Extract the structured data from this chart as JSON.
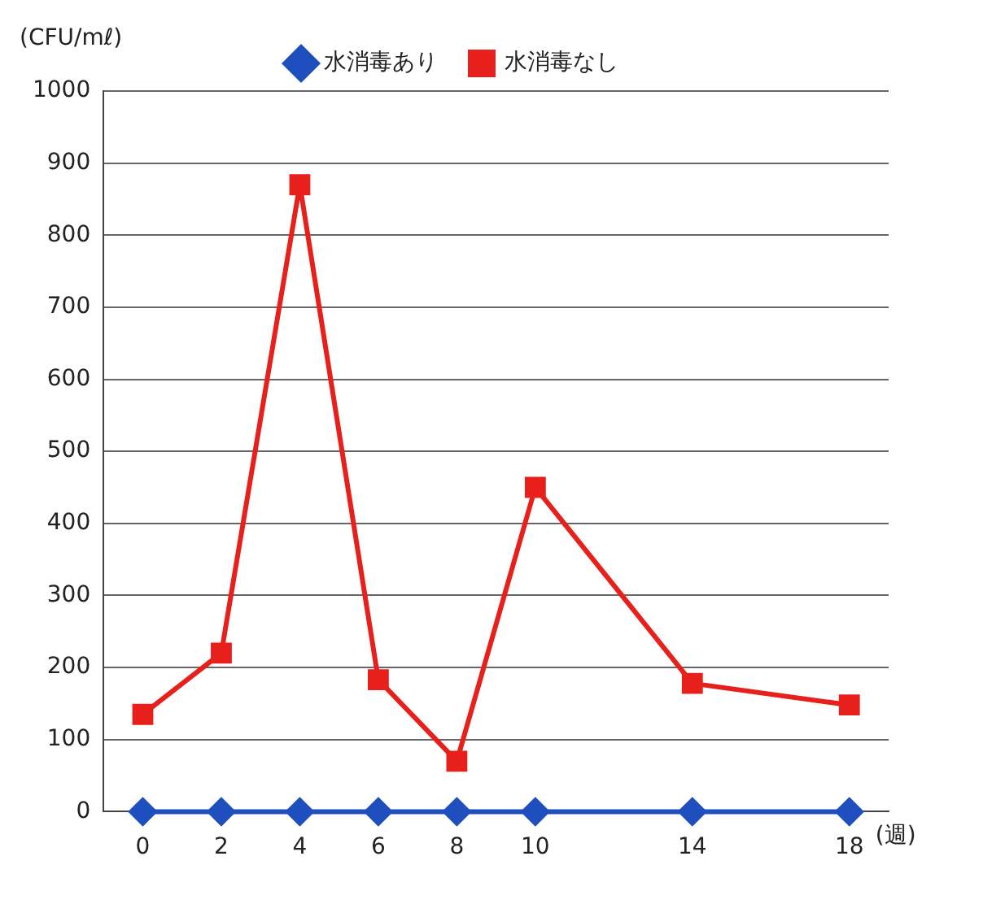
{
  "chart_data": {
    "type": "line",
    "ylabel": "(CFU/mℓ)",
    "xlabel": "(週)",
    "x": [
      0,
      2,
      4,
      6,
      8,
      10,
      14,
      18
    ],
    "xlim": [
      -1,
      19
    ],
    "xticks": [
      0,
      2,
      4,
      6,
      8,
      10,
      14,
      18
    ],
    "ylim": [
      0,
      1000
    ],
    "yticks": [
      0,
      100,
      200,
      300,
      400,
      500,
      600,
      700,
      800,
      900,
      1000
    ],
    "grid": "y",
    "legend": "top",
    "line_style": "solid",
    "series": [
      {
        "name": "水消毒あり",
        "color": "#1f4fbf",
        "marker": "diamond",
        "values": [
          0,
          0,
          0,
          0,
          0,
          0,
          0,
          0
        ]
      },
      {
        "name": "水消毒なし",
        "color": "#e8201c",
        "marker": "square",
        "values": [
          135,
          220,
          870,
          183,
          70,
          450,
          178,
          148
        ]
      }
    ]
  }
}
